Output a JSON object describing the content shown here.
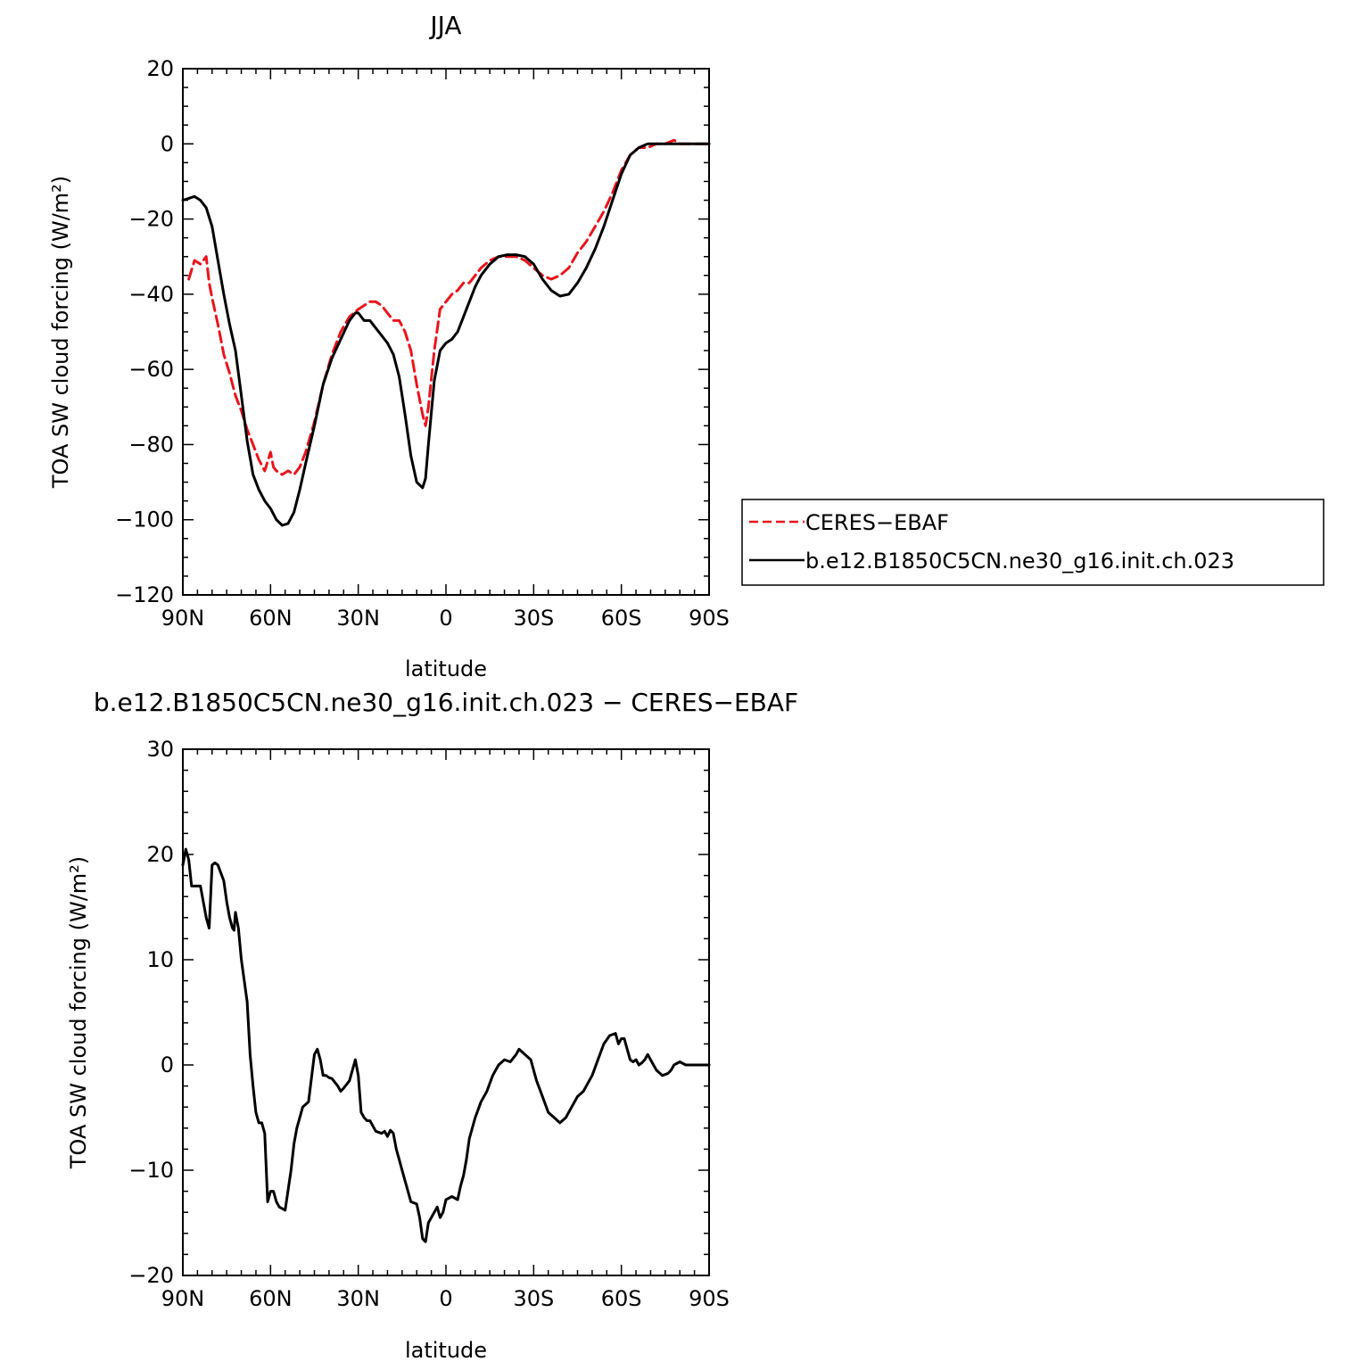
{
  "chart_data": [
    {
      "type": "line",
      "title": "JJA",
      "xlabel": "latitude",
      "ylabel": "TOA SW cloud forcing (W/m²)",
      "xlim": [
        90,
        -90
      ],
      "ylim": [
        -120,
        20
      ],
      "x_tick_values": [
        90,
        60,
        30,
        0,
        -30,
        -60,
        -90
      ],
      "x_tick_labels": [
        "90N",
        "60N",
        "30N",
        "0",
        "30S",
        "60S",
        "90S"
      ],
      "y_tick_values": [
        20,
        0,
        -20,
        -40,
        -60,
        -80,
        -100,
        -120
      ],
      "y_tick_labels": [
        "20",
        "0",
        "−20",
        "−40",
        "−60",
        "−80",
        "−100",
        "−120"
      ],
      "legend_position": "right",
      "series": [
        {
          "name": "CERES−EBAF",
          "color": "#e8141c",
          "style": "dashed",
          "x": [
            88,
            86,
            84,
            82,
            81,
            80,
            78,
            76,
            74,
            72,
            70,
            68,
            66,
            64,
            62,
            60,
            59,
            58,
            56,
            54,
            52,
            50,
            48,
            45,
            42,
            39,
            36,
            33,
            30,
            28,
            26,
            24,
            22,
            20,
            18,
            16,
            14,
            12,
            10,
            8,
            7,
            6,
            4,
            2,
            0,
            -2,
            -4,
            -6,
            -8,
            -10,
            -12,
            -15,
            -18,
            -21,
            -24,
            -27,
            -30,
            -33,
            -36,
            -39,
            -42,
            -45,
            -48,
            -51,
            -54,
            -57,
            -60,
            -63,
            -66,
            -69,
            -72,
            -75,
            -78,
            -80,
            -84,
            -88,
            -90
          ],
          "y": [
            -36,
            -31,
            -32,
            -30,
            -37,
            -41,
            -48,
            -56,
            -61,
            -67,
            -71,
            -76,
            -80,
            -84,
            -87,
            -82,
            -86,
            -87,
            -88,
            -87,
            -88,
            -86,
            -82,
            -74,
            -64,
            -56,
            -50,
            -46,
            -44,
            -43,
            -42,
            -42,
            -43,
            -45,
            -47,
            -47,
            -50,
            -55,
            -64,
            -72,
            -75,
            -70,
            -55,
            -44,
            -42,
            -40,
            -39,
            -37,
            -37,
            -35,
            -33,
            -31,
            -30,
            -30,
            -30,
            -31,
            -33,
            -35,
            -36,
            -35,
            -33,
            -29,
            -26,
            -22,
            -18,
            -13,
            -7,
            -3,
            -1,
            -1,
            0,
            0,
            1,
            0,
            0,
            0,
            0
          ]
        },
        {
          "name": "b.e12.B1850C5CN.ne30_g16.init.ch.023",
          "color": "#000000",
          "style": "solid",
          "x": [
            90,
            88,
            86,
            84,
            82,
            80,
            78,
            76,
            74,
            72,
            70,
            68,
            66,
            64,
            62,
            60,
            58,
            56,
            54,
            52,
            50,
            48,
            45,
            42,
            39,
            36,
            33,
            31,
            30,
            28,
            26,
            24,
            22,
            20,
            18,
            16,
            14,
            12,
            10,
            8,
            7,
            6,
            4,
            2,
            0,
            -2,
            -4,
            -6,
            -8,
            -10,
            -12,
            -15,
            -18,
            -21,
            -24,
            -27,
            -30,
            -33,
            -36,
            -39,
            -42,
            -45,
            -48,
            -51,
            -54,
            -57,
            -60,
            -63,
            -66,
            -69,
            -72,
            -75,
            -78,
            -80,
            -84,
            -88,
            -90
          ],
          "y": [
            -15,
            -14.5,
            -14,
            -15,
            -17,
            -22,
            -31,
            -40,
            -48,
            -55,
            -67,
            -79,
            -88,
            -92,
            -95,
            -97,
            -100,
            -101.5,
            -101,
            -98,
            -92,
            -85,
            -75,
            -64,
            -57,
            -52,
            -47,
            -45,
            -45,
            -47,
            -47,
            -49,
            -51,
            -53,
            -56,
            -62,
            -72,
            -83,
            -90,
            -91.5,
            -89,
            -80,
            -63,
            -55,
            -53,
            -52,
            -50,
            -46,
            -42,
            -38,
            -35,
            -32,
            -30,
            -29.5,
            -29.5,
            -30,
            -32,
            -36,
            -39,
            -40.5,
            -40,
            -37,
            -33,
            -28,
            -22,
            -15,
            -8,
            -3,
            -1,
            0,
            0,
            0,
            0,
            0,
            0,
            0,
            0
          ]
        }
      ]
    },
    {
      "type": "line",
      "title": "b.e12.B1850C5CN.ne30_g16.init.ch.023 − CERES−EBAF",
      "xlabel": "latitude",
      "ylabel": "TOA SW cloud forcing (W/m²)",
      "xlim": [
        90,
        -90
      ],
      "ylim": [
        -20,
        30
      ],
      "x_tick_values": [
        90,
        60,
        30,
        0,
        -30,
        -60,
        -90
      ],
      "x_tick_labels": [
        "90N",
        "60N",
        "30N",
        "0",
        "30S",
        "60S",
        "90S"
      ],
      "y_tick_values": [
        30,
        20,
        10,
        0,
        -10,
        -20
      ],
      "y_tick_labels": [
        "30",
        "20",
        "10",
        "0",
        "−10",
        "−20"
      ],
      "series": [
        {
          "color": "#000000",
          "style": "solid",
          "x": [
            90,
            89,
            88,
            87,
            86,
            84,
            82,
            81,
            80,
            79,
            78,
            76,
            75,
            74,
            73,
            72.5,
            72,
            71,
            70,
            68,
            67,
            66,
            65,
            64,
            63,
            62,
            61,
            60,
            59,
            58,
            57,
            55,
            53,
            52,
            51,
            49,
            47,
            45,
            44,
            43,
            42,
            41,
            40,
            39,
            37,
            36,
            35,
            33,
            31,
            30,
            29,
            28,
            27,
            26,
            24,
            22,
            21,
            20,
            19,
            18,
            17,
            16,
            15,
            14,
            12,
            10,
            9,
            8,
            7,
            6,
            4,
            3,
            2,
            1,
            0,
            -2,
            -4,
            -5,
            -6,
            -7,
            -8,
            -10,
            -12,
            -14,
            -16,
            -17,
            -18,
            -20,
            -22,
            -24,
            -25,
            -27,
            -29,
            -30,
            -31,
            -33,
            -35,
            -37,
            -39,
            -41,
            -43,
            -45,
            -47,
            -49,
            -50,
            -52,
            -54,
            -56,
            -58,
            -59,
            -60,
            -61,
            -62,
            -63,
            -64,
            -65,
            -66,
            -67,
            -68,
            -69,
            -70,
            -72,
            -74,
            -76,
            -77,
            -78,
            -80,
            -82,
            -84,
            -87,
            -90
          ],
          "y": [
            19,
            20.5,
            19.5,
            17,
            17,
            17,
            14,
            13,
            19,
            19.2,
            19,
            17.5,
            15.5,
            14,
            13,
            12.8,
            14.5,
            13,
            10,
            6,
            1,
            -2,
            -4.5,
            -5.5,
            -5.5,
            -6.5,
            -13,
            -12,
            -12,
            -13,
            -13.5,
            -13.8,
            -10,
            -7.5,
            -6,
            -4,
            -3.5,
            1,
            1.5,
            0.5,
            -1,
            -1,
            -1.2,
            -1.3,
            -2,
            -2.5,
            -2.2,
            -1.5,
            0.5,
            -1,
            -4.5,
            -5,
            -5.3,
            -5.3,
            -6.3,
            -6.5,
            -6.3,
            -6.8,
            -6.2,
            -6.5,
            -8,
            -9,
            -10,
            -11,
            -13,
            -13.2,
            -14.5,
            -16.5,
            -16.8,
            -15,
            -14,
            -13.5,
            -14.5,
            -14,
            -12.8,
            -12.5,
            -12.8,
            -11.5,
            -10.5,
            -9,
            -7,
            -5,
            -3.5,
            -2.5,
            -1,
            -0.5,
            0,
            0.5,
            0.3,
            1,
            1.5,
            1,
            0.5,
            -0.5,
            -1.5,
            -3,
            -4.5,
            -5,
            -5.5,
            -5,
            -4,
            -3,
            -2.5,
            -1.5,
            -1,
            0.5,
            2,
            2.8,
            3,
            2,
            2.5,
            2.5,
            1.5,
            0.5,
            0.3,
            0.5,
            0,
            0.2,
            0.5,
            1,
            0.5,
            -0.5,
            -1,
            -0.8,
            -0.5,
            0,
            0.3,
            0,
            0,
            0,
            0
          ]
        }
      ]
    }
  ]
}
